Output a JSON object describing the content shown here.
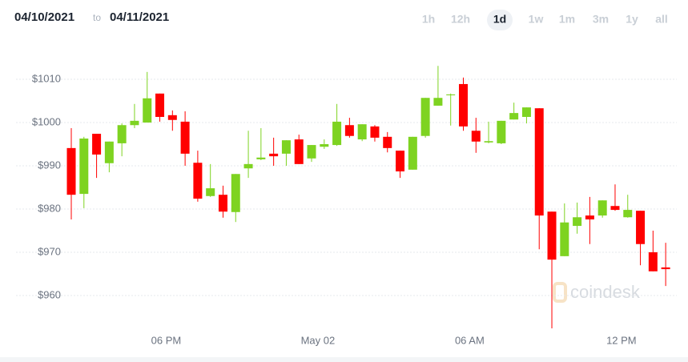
{
  "header": {
    "from": "04/10/2021",
    "to_label": "to",
    "to": "04/11/2021"
  },
  "range_buttons": [
    "1h",
    "12h",
    "1d",
    "1w",
    "1m",
    "3m",
    "1y",
    "all"
  ],
  "selected_range": "1d",
  "chart_data": {
    "type": "candlestick",
    "watermark": "coindesk",
    "up_color": "#7ed321",
    "down_color": "#ff0000",
    "grid": true,
    "ylim": [
      949,
      1017
    ],
    "yticks": [
      {
        "value": 960,
        "label": "$960"
      },
      {
        "value": 970,
        "label": "$970"
      },
      {
        "value": 980,
        "label": "$980"
      },
      {
        "value": 990,
        "label": "$990"
      },
      {
        "value": 1000,
        "label": "$1000"
      },
      {
        "value": 1010,
        "label": "$1010"
      }
    ],
    "categories": [
      null,
      null,
      null,
      null,
      null,
      null,
      null,
      null,
      "06 PM",
      null,
      null,
      null,
      null,
      null,
      null,
      null,
      null,
      null,
      null,
      null,
      "May 02",
      null,
      null,
      null,
      null,
      null,
      null,
      null,
      null,
      null,
      null,
      null,
      "06 AM",
      null,
      null,
      null,
      null,
      null,
      null,
      null,
      null,
      null,
      null,
      null,
      "12 PM",
      null,
      null,
      null
    ],
    "open": [
      994.1,
      983.5,
      997.4,
      990.6,
      995.2,
      999.4,
      1000.0,
      1006.7,
      1001.7,
      1000.2,
      990.7,
      983.0,
      983.3,
      979.3,
      989.4,
      991.5,
      992.8,
      992.8,
      996.1,
      991.7,
      994.4,
      994.8,
      999.4,
      996.1,
      999.1,
      996.7,
      993.5,
      989.1,
      996.9,
      1003.9,
      1006.3,
      1008.9,
      998.1,
      995.4,
      995.2,
      1000.7,
      1001.3,
      1003.3,
      979.4,
      969.1,
      976.1,
      978.5,
      978.5,
      980.7,
      978.1,
      979.6,
      970.0,
      966.5
    ],
    "high": [
      998.7,
      996.7,
      997.4,
      995.6,
      999.8,
      1004.3,
      1011.7,
      1006.7,
      1002.8,
      1002.6,
      993.5,
      990.4,
      985.4,
      988.1,
      998.1,
      998.7,
      996.5,
      995.9,
      997.2,
      994.8,
      996.1,
      1004.3,
      1001.1,
      999.6,
      999.4,
      997.8,
      993.5,
      996.7,
      1005.7,
      1013.1,
      1006.7,
      1010.4,
      1001.1,
      1000.2,
      1000.4,
      1004.6,
      1003.5,
      1003.3,
      979.4,
      981.3,
      981.5,
      982.8,
      982.0,
      985.7,
      983.3,
      979.6,
      975.0,
      972.2
    ],
    "low": [
      977.6,
      980.2,
      987.2,
      988.5,
      992.2,
      998.7,
      1000.0,
      1000.2,
      998.1,
      990.0,
      981.7,
      982.8,
      978.0,
      977.0,
      987.2,
      991.3,
      990.0,
      990.0,
      990.4,
      990.9,
      993.9,
      994.6,
      996.5,
      995.7,
      995.6,
      993.1,
      987.2,
      989.1,
      996.5,
      1003.9,
      999.3,
      998.1,
      993.0,
      995.2,
      995.0,
      1000.7,
      999.8,
      970.7,
      952.4,
      969.1,
      974.3,
      971.9,
      978.0,
      979.6,
      978.0,
      967.0,
      965.6,
      962.2
    ],
    "close": [
      983.3,
      996.3,
      992.6,
      995.6,
      999.4,
      1000.4,
      1005.6,
      1001.3,
      1000.6,
      992.8,
      982.4,
      984.8,
      979.4,
      988.1,
      990.4,
      991.9,
      992.2,
      995.9,
      990.4,
      994.8,
      995.0,
      1000.2,
      996.9,
      999.6,
      996.5,
      994.1,
      988.7,
      996.7,
      1005.7,
      1005.7,
      1006.5,
      999.1,
      995.6,
      995.7,
      1000.4,
      1002.2,
      1003.5,
      978.5,
      968.3,
      976.9,
      978.1,
      977.6,
      982.0,
      979.8,
      979.8,
      971.9,
      965.6,
      966.1
    ]
  }
}
